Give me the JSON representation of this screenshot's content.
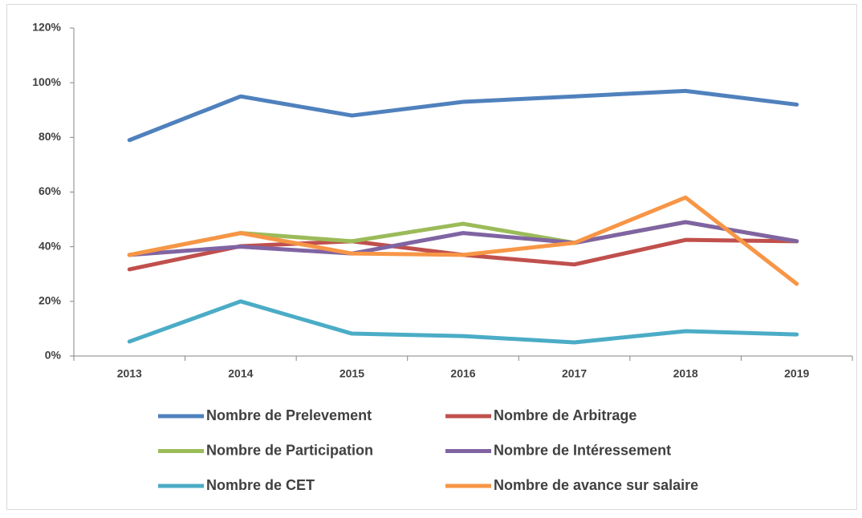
{
  "chart_data": {
    "type": "line",
    "categories": [
      "2013",
      "2014",
      "2015",
      "2016",
      "2017",
      "2018",
      "2019"
    ],
    "series": [
      {
        "name": "Nombre de Prelevement",
        "color": "#4f81bd",
        "values": [
          79,
          95,
          88,
          93,
          95,
          97,
          92
        ]
      },
      {
        "name": "Nombre de Arbitrage",
        "color": "#c0504d",
        "values": [
          31.7,
          40.2,
          42,
          37,
          33.5,
          42.5,
          42
        ]
      },
      {
        "name": "Nombre de Participation",
        "color": "#9bbb59",
        "values": [
          37,
          45,
          42,
          48.4,
          41.4,
          49,
          42
        ]
      },
      {
        "name": "Nombre de Intéressement",
        "color": "#8064a2",
        "values": [
          37,
          40,
          37.5,
          45,
          41.4,
          49,
          42
        ]
      },
      {
        "name": "Nombre de CET",
        "color": "#4bacc6",
        "values": [
          5.3,
          20,
          8.2,
          7.3,
          5,
          9.1,
          7.9
        ]
      },
      {
        "name": "Nombre de avance sur salaire",
        "color": "#f79646",
        "values": [
          37,
          45,
          37.5,
          37,
          41.4,
          58,
          26.4
        ]
      }
    ],
    "ylim": [
      0,
      120
    ],
    "yticks": [
      {
        "value": 0,
        "label": "0%"
      },
      {
        "value": 20,
        "label": "20%"
      },
      {
        "value": 40,
        "label": "40%"
      },
      {
        "value": 60,
        "label": "60%"
      },
      {
        "value": 80,
        "label": "80%"
      },
      {
        "value": 100,
        "label": "100%"
      },
      {
        "value": 120,
        "label": "120%"
      }
    ],
    "grid": false
  }
}
